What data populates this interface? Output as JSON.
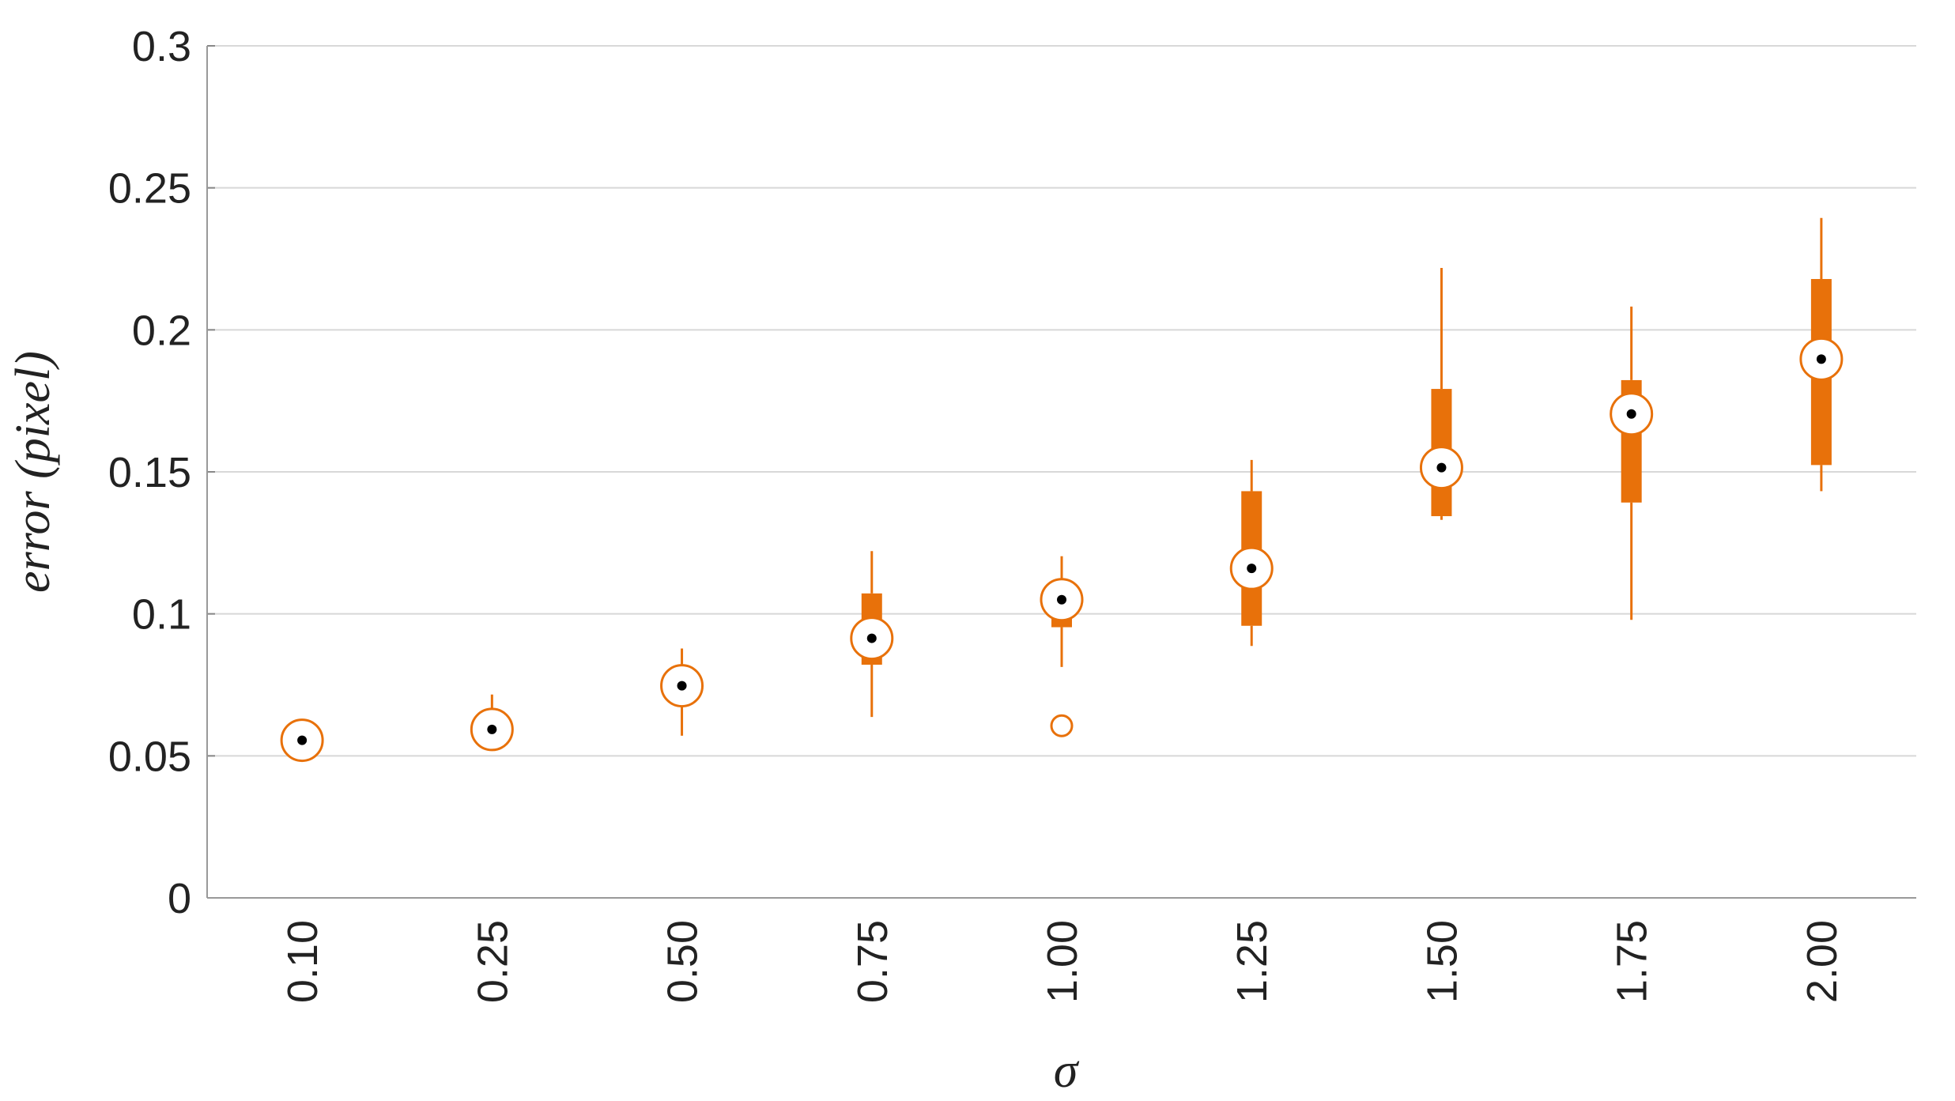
{
  "chart_data": {
    "type": "box",
    "x_label": "σ",
    "y_label": "error (pixel)",
    "categories": [
      "0.10",
      "0.25",
      "0.50",
      "0.75",
      "1.00",
      "1.25",
      "1.50",
      "1.75",
      "2.00"
    ],
    "color": "#e8710a",
    "boxes": [
      {
        "whisker_low": 0.055,
        "q1": 0.055,
        "median": 0.0555,
        "q3": 0.056,
        "whisker_high": 0.056,
        "outliers": []
      },
      {
        "whisker_low": 0.058,
        "q1": 0.058,
        "median": 0.0593,
        "q3": 0.062,
        "whisker_high": 0.0716,
        "outliers": []
      },
      {
        "whisker_low": 0.0571,
        "q1": 0.0681,
        "median": 0.0747,
        "q3": 0.0813,
        "whisker_high": 0.0878,
        "outliers": []
      },
      {
        "whisker_low": 0.0637,
        "q1": 0.0821,
        "median": 0.0914,
        "q3": 0.1072,
        "whisker_high": 0.1221,
        "outliers": []
      },
      {
        "whisker_low": 0.0813,
        "q1": 0.0953,
        "median": 0.105,
        "q3": 0.1102,
        "whisker_high": 0.1203,
        "outliers": [
          0.0606
        ]
      },
      {
        "whisker_low": 0.0887,
        "q1": 0.0958,
        "median": 0.116,
        "q3": 0.1432,
        "whisker_high": 0.1542,
        "outliers": []
      },
      {
        "whisker_low": 0.1331,
        "q1": 0.1344,
        "median": 0.1515,
        "q3": 0.1792,
        "whisker_high": 0.2218,
        "outliers": []
      },
      {
        "whisker_low": 0.0979,
        "q1": 0.1392,
        "median": 0.1704,
        "q3": 0.1823,
        "whisker_high": 0.2082,
        "outliers": []
      },
      {
        "whisker_low": 0.1432,
        "q1": 0.1524,
        "median": 0.1897,
        "q3": 0.2179,
        "whisker_high": 0.2394,
        "outliers": []
      }
    ],
    "ylim": [
      0,
      0.3
    ],
    "yticks": [
      0,
      0.05,
      0.1,
      0.15,
      0.2,
      0.25,
      0.3
    ],
    "grid": true
  }
}
